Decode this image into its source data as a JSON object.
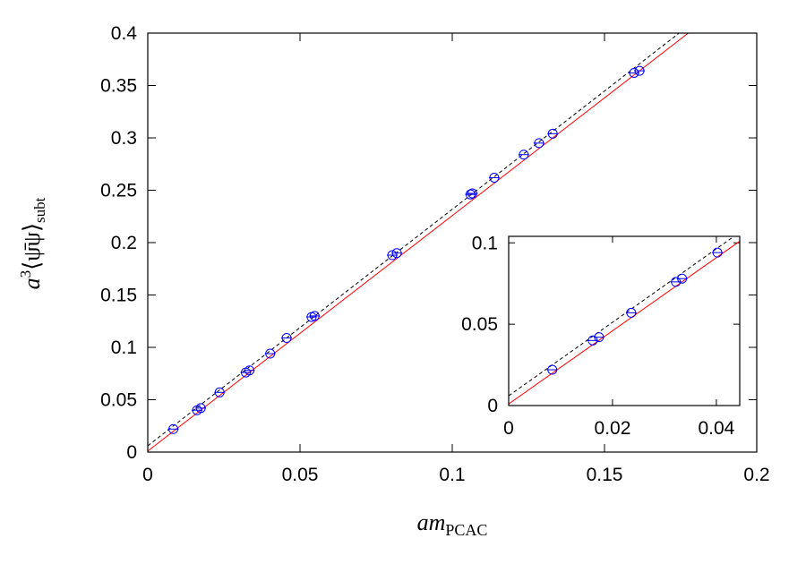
{
  "chart_data": [
    {
      "type": "scatter",
      "xlabel": {
        "base": "am",
        "sub": "PCAC"
      },
      "ylabel": {
        "base": "a",
        "sup": "3",
        "main": "⟨ψ̄ψ⟩",
        "sub": "subt"
      },
      "xlim": [
        0,
        0.2
      ],
      "ylim": [
        0,
        0.4
      ],
      "xticks": [
        0,
        0.05,
        0.1,
        0.15,
        0.2
      ],
      "yticks": [
        0,
        0.05,
        0.1,
        0.15,
        0.2,
        0.25,
        0.3,
        0.35,
        0.4
      ],
      "series": [
        {
          "style": "dashed",
          "color": "#000000",
          "x": [
            0,
            0.1745
          ],
          "values": [
            0.006,
            0.4
          ]
        },
        {
          "style": "line",
          "color": "#ff0000",
          "x": [
            0,
            0.1775
          ],
          "values": [
            0.001,
            0.4
          ]
        },
        {
          "style": "points",
          "color": "#0000ff",
          "x": [
            0.0084,
            0.0162,
            0.0174,
            0.0236,
            0.0322,
            0.0334,
            0.0402,
            0.0456,
            0.0538,
            0.0548,
            0.0803,
            0.0818,
            0.106,
            0.1066,
            0.1138,
            0.1235,
            0.1285,
            0.133,
            0.1597,
            0.1615
          ],
          "values": [
            0.022,
            0.04,
            0.042,
            0.057,
            0.076,
            0.078,
            0.094,
            0.109,
            0.129,
            0.13,
            0.188,
            0.19,
            0.246,
            0.247,
            0.262,
            0.284,
            0.295,
            0.304,
            0.362,
            0.364
          ]
        }
      ]
    },
    {
      "type": "scatter",
      "xlim": [
        0,
        0.0445
      ],
      "ylim": [
        0,
        0.104
      ],
      "xticks": [
        0,
        0.02,
        0.04
      ],
      "yticks": [
        0,
        0.05,
        0.1
      ],
      "series": [
        {
          "style": "dashed",
          "color": "#000000",
          "x": [
            0,
            0.0445
          ],
          "values": [
            0.006,
            0.1065
          ]
        },
        {
          "style": "line",
          "color": "#ff0000",
          "x": [
            0,
            0.0445
          ],
          "values": [
            0.001,
            0.101
          ]
        },
        {
          "style": "points",
          "color": "#0000ff",
          "x": [
            0.0084,
            0.0162,
            0.0174,
            0.0236,
            0.0322,
            0.0334,
            0.0402
          ],
          "values": [
            0.022,
            0.04,
            0.042,
            0.057,
            0.076,
            0.078,
            0.094
          ]
        }
      ]
    }
  ]
}
